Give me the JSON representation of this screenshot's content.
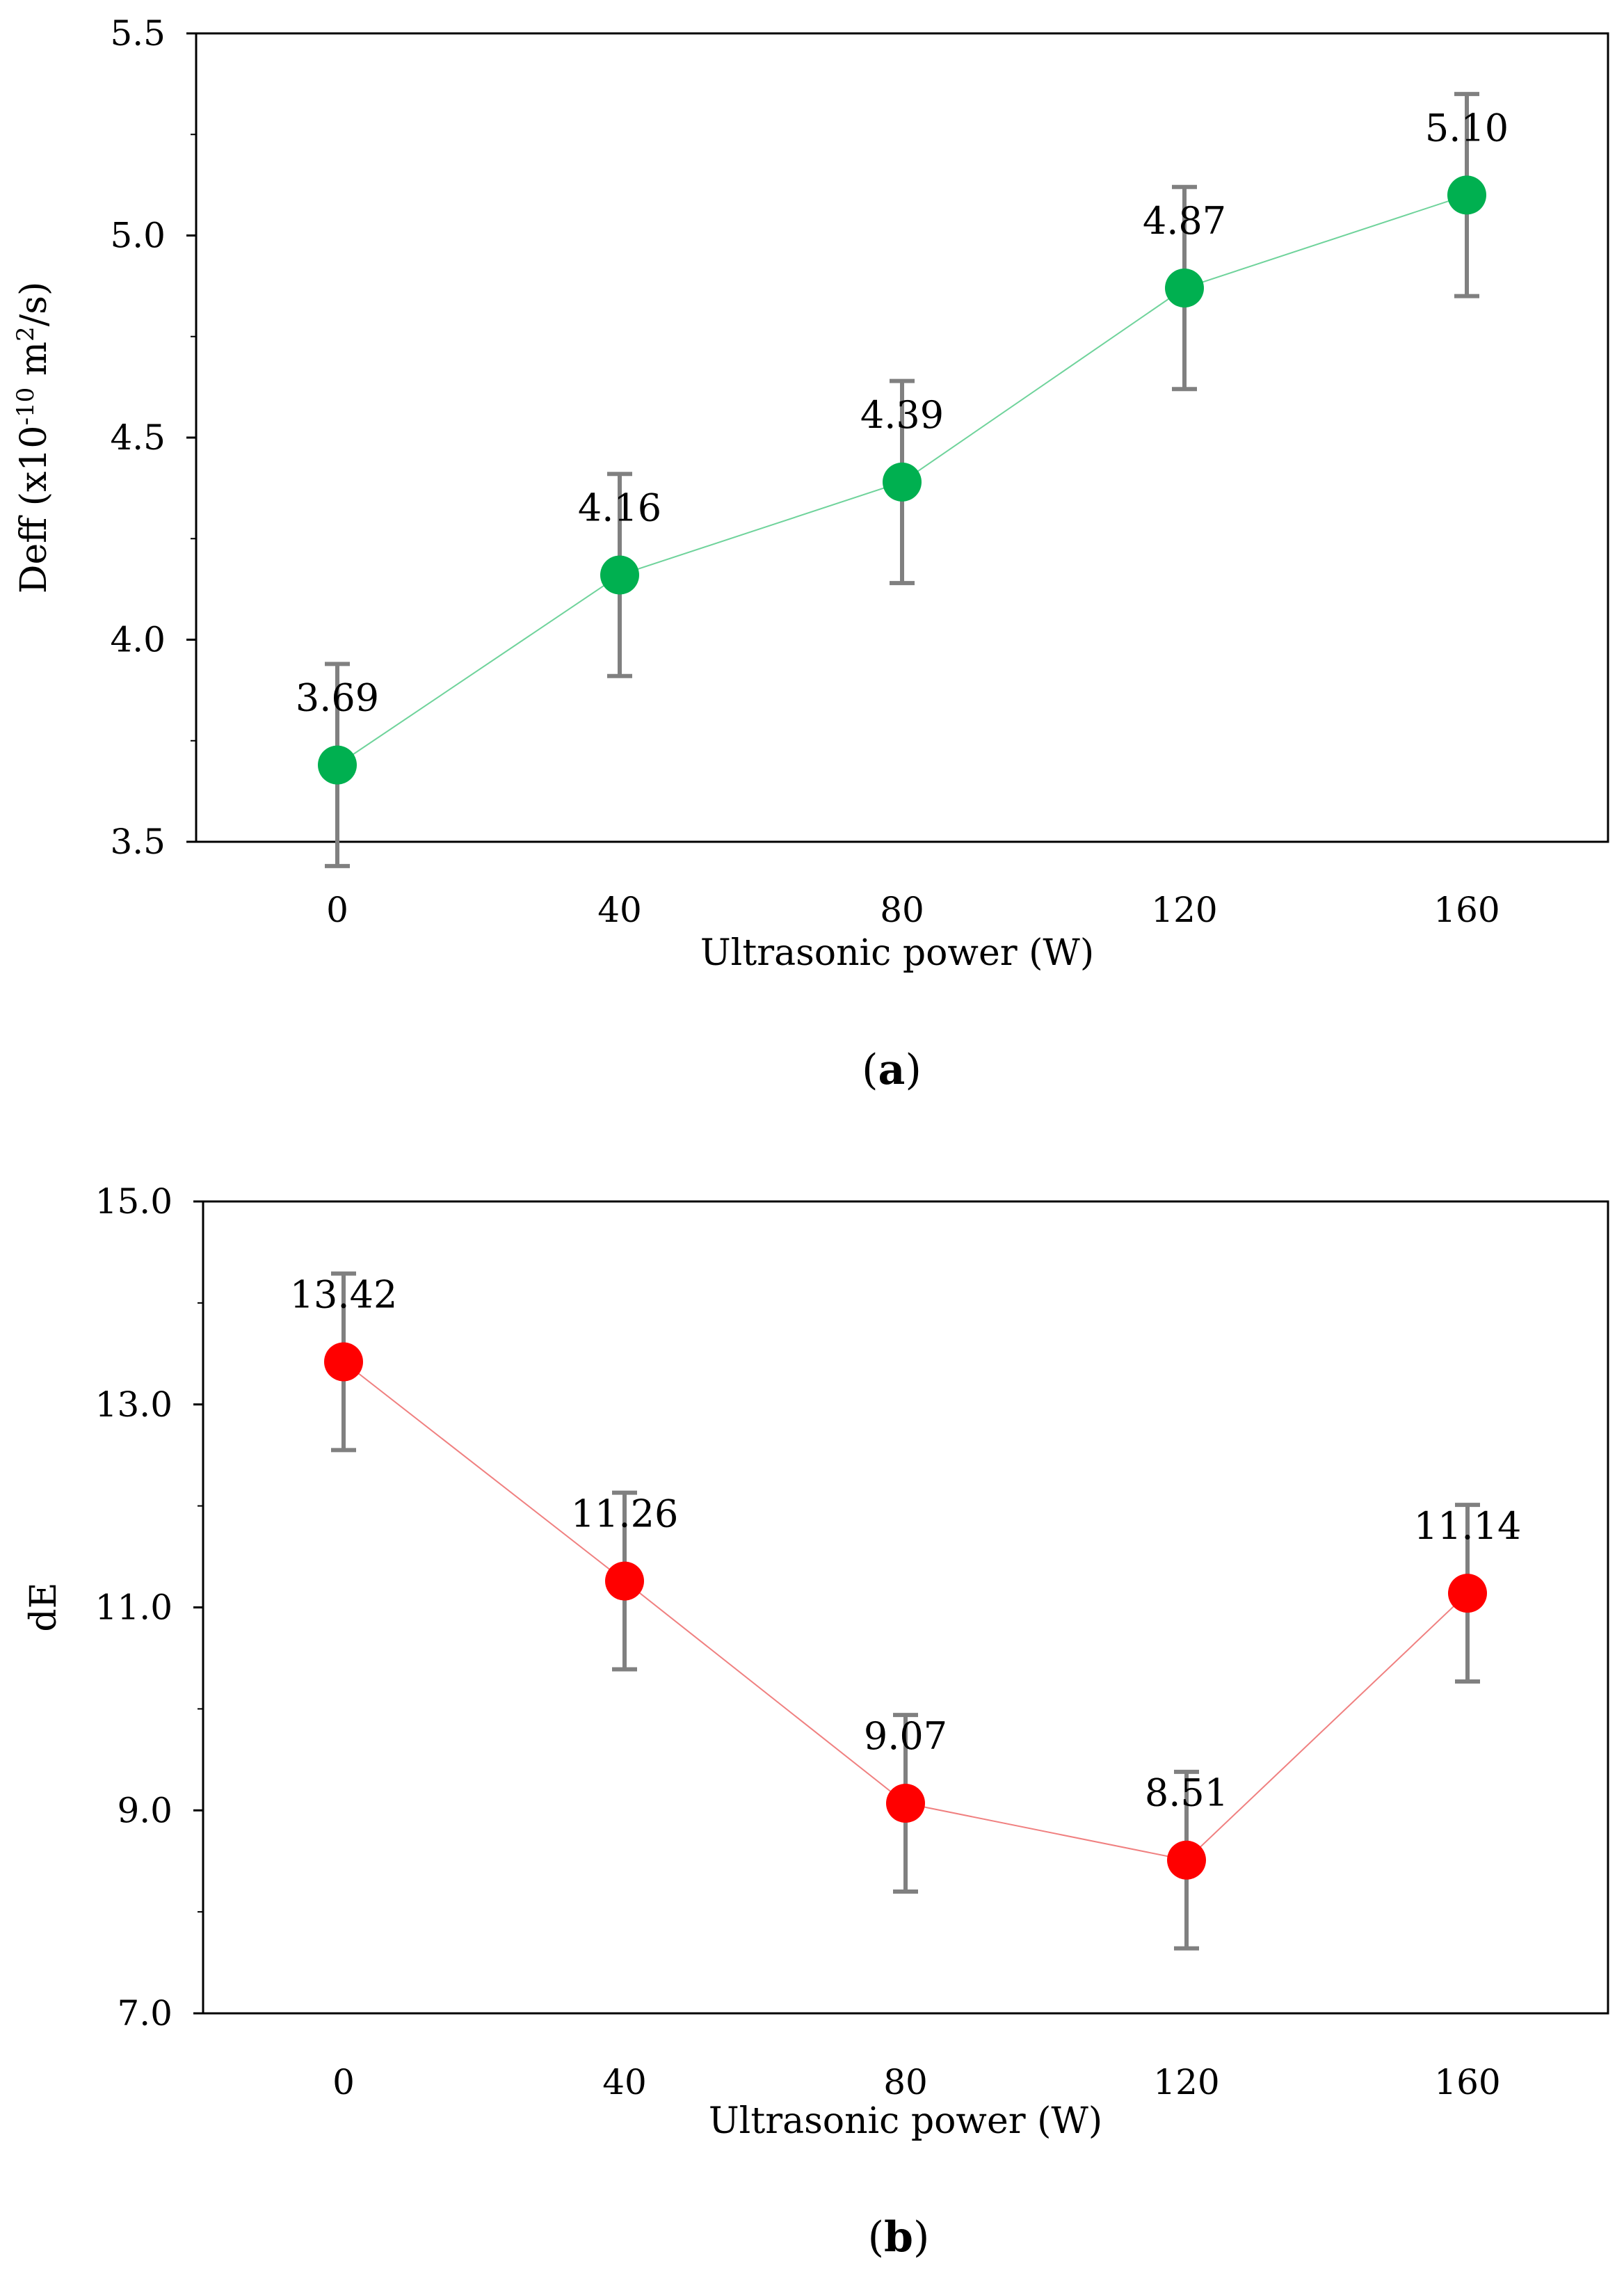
{
  "chart_data": [
    {
      "id": "a",
      "type": "line",
      "caption_letter": "a",
      "xlabel": "Ultrasonic power (W)",
      "ylabel_main": "Deff (x10",
      "ylabel_exp": "-10",
      "ylabel_unit": " m",
      "ylabel_unit_exp": "2",
      "ylabel_end": "/s)",
      "x": [
        0,
        40,
        80,
        120,
        160
      ],
      "x_tick_labels": [
        "0",
        "40",
        "80",
        "120",
        "160"
      ],
      "xlim": [
        -20,
        180
      ],
      "ylim": [
        3.5,
        5.5
      ],
      "y_ticks": [
        3.5,
        4.0,
        4.5,
        5.0,
        5.5
      ],
      "y_tick_labels": [
        "3.5",
        "4.0",
        "4.5",
        "5.0",
        "5.5"
      ],
      "y_minor_step": 0.25,
      "series": [
        {
          "name": "Deff",
          "values": [
            3.69,
            4.16,
            4.39,
            4.87,
            5.1
          ],
          "error": [
            0.25,
            0.25,
            0.25,
            0.25,
            0.25
          ],
          "data_labels": [
            "3.69",
            "4.16",
            "4.39",
            "4.87",
            "5.10"
          ],
          "marker_color": "#00b050",
          "line_color": "#6fd39b"
        }
      ],
      "error_bar_color": "#808080",
      "grid": false
    },
    {
      "id": "b",
      "type": "line",
      "caption_letter": "b",
      "xlabel": "Ultrasonic power (W)",
      "ylabel": "dE",
      "x": [
        0,
        40,
        80,
        120,
        160
      ],
      "x_tick_labels": [
        "0",
        "40",
        "80",
        "120",
        "160"
      ],
      "xlim": [
        -20,
        180
      ],
      "ylim": [
        7.0,
        15.0
      ],
      "y_ticks": [
        7.0,
        9.0,
        11.0,
        13.0,
        15.0
      ],
      "y_tick_labels": [
        "7.0",
        "9.0",
        "11.0",
        "13.0",
        "15.0"
      ],
      "y_minor_step": 1.0,
      "series": [
        {
          "name": "dE",
          "values": [
            13.42,
            11.26,
            9.07,
            8.51,
            11.14
          ],
          "error": [
            0.87,
            0.87,
            0.87,
            0.87,
            0.87
          ],
          "data_labels": [
            "13.42",
            "11.26",
            "9.07",
            "8.51",
            "11.14"
          ],
          "marker_color": "#ff0000",
          "line_color": "#f08080"
        }
      ],
      "error_bar_color": "#808080",
      "grid": false
    }
  ]
}
